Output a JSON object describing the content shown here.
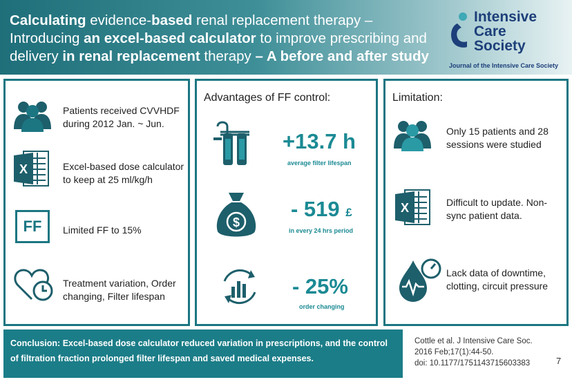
{
  "header": {
    "title_line1_bold": "Calculating",
    "title_line1_thin": " evidence-",
    "title_line1_bold2": "based",
    "title_line1_thin2": " renal replacement therapy –",
    "title_line2_thin": "Introducing ",
    "title_line2_bold": "an excel-based calculator",
    "title_line2_thin2": " to improve prescribing and",
    "title_line3_thin": "delivery ",
    "title_line3_bold": "in renal replacement",
    "title_line3_thin2": " therapy",
    "title_line3_bold2": " – A before and after study"
  },
  "logo": {
    "line1": "Intensive",
    "line2": "Care",
    "line3": "Society",
    "journal": "Journal of the Intensive Care Society"
  },
  "left_panel": {
    "items": [
      {
        "text": "Patients received CVVHDF during 2012 Jan. ~ Jun.",
        "icon": "people-icon"
      },
      {
        "text": "Excel-based dose calculator to keep at 25 ml/kg/h",
        "icon": "excel-icon"
      },
      {
        "text": "Limited FF to 15%",
        "icon": "ff-icon",
        "badge": "FF"
      },
      {
        "text": "Treatment variation, Order changing, Filter lifespan",
        "icon": "heart-clock-icon"
      }
    ]
  },
  "middle_panel": {
    "title": "Advantages of FF control:",
    "stats": [
      {
        "value": "+13.7 h",
        "unit": "",
        "label": "average filter lifespan",
        "icon": "filter-icon"
      },
      {
        "value": "- 519",
        "unit": "£",
        "label": "in every 24 hrs period",
        "icon": "money-bag-icon"
      },
      {
        "value": "- 25%",
        "unit": "",
        "label": "order changing",
        "icon": "bar-cycle-icon"
      }
    ]
  },
  "right_panel": {
    "title": "Limitation:",
    "items": [
      {
        "text": "Only 15 patients and 28 sessions were studied",
        "icon": "people-icon"
      },
      {
        "text": "Difficult to update. Non-sync patient data.",
        "icon": "excel-icon"
      },
      {
        "text": "Lack data of downtime, clotting, circuit pressure",
        "icon": "drop-gauge-icon"
      }
    ]
  },
  "conclusion": {
    "text": "Conclusion:  Excel-based dose calculator reduced variation in prescriptions, and the control of filtration fraction prolonged filter lifespan and saved medical expenses."
  },
  "citation": {
    "line1": "Cottle et al. J Intensive Care Soc.",
    "line2": "2016 Feb;17(1):44-50.",
    "line3": "doi: 10.1177/1751143715603383"
  },
  "page_number": "7",
  "colors": {
    "teal": "#1b7682",
    "teal_text": "#1b8a94",
    "navy": "#1d3f7a"
  }
}
